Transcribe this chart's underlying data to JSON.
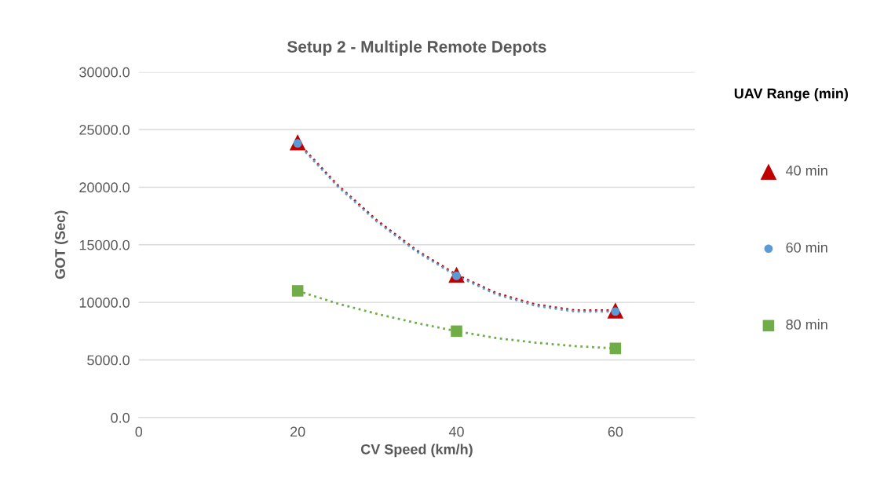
{
  "chart_data": {
    "type": "scatter",
    "title": "Setup 2 - Multiple Remote Depots",
    "xlabel": "CV Speed (km/h)",
    "ylabel": "GOT (Sec)",
    "legend_title": "UAV Range (min)",
    "x": [
      20,
      40,
      60
    ],
    "series": [
      {
        "name": "40 min",
        "color": "#c00000",
        "marker": "triangle",
        "values": [
          23900,
          12400,
          9300
        ]
      },
      {
        "name": "60 min",
        "color": "#5b9bd5",
        "marker": "circle",
        "values": [
          23800,
          12300,
          9200
        ]
      },
      {
        "name": "80 min",
        "color": "#70ad47",
        "marker": "square",
        "values": [
          11000,
          7500,
          6000
        ]
      },
      {
        "type": "line",
        "color": "#c00000",
        "line_style": "dotted",
        "marker": "none",
        "x": [
          20,
          25,
          30,
          35,
          40,
          45,
          50,
          55,
          60
        ],
        "values": [
          23900,
          20200,
          17100,
          14500,
          12400,
          10800,
          9800,
          9300,
          9300
        ]
      },
      {
        "type": "line",
        "color": "#5b9bd5",
        "line_style": "dotted",
        "marker": "none",
        "x": [
          20,
          25,
          30,
          35,
          40,
          45,
          50,
          55,
          60
        ],
        "values": [
          23800,
          20100,
          17000,
          14400,
          12300,
          10700,
          9700,
          9200,
          9200
        ]
      },
      {
        "type": "line",
        "color": "#70ad47",
        "line_style": "dotted",
        "marker": "none",
        "x": [
          20,
          25,
          30,
          35,
          40,
          45,
          50,
          55,
          60
        ],
        "values": [
          11000,
          9900,
          9000,
          8200,
          7500,
          6900,
          6500,
          6200,
          6000
        ]
      }
    ],
    "xlim": [
      0,
      70
    ],
    "xticks": [
      0,
      20,
      40,
      60
    ],
    "ylim": [
      0,
      30000
    ],
    "yticks": [
      {
        "value": 0,
        "label": "0.0"
      },
      {
        "value": 5000,
        "label": "5000.0"
      },
      {
        "value": 10000,
        "label": "10000.0"
      },
      {
        "value": 15000,
        "label": "15000.0"
      },
      {
        "value": 20000,
        "label": "20000.0"
      },
      {
        "value": 25000,
        "label": "25000.0"
      },
      {
        "value": 30000,
        "label": "30000.0"
      }
    ],
    "grid": "y",
    "legend": "right"
  }
}
